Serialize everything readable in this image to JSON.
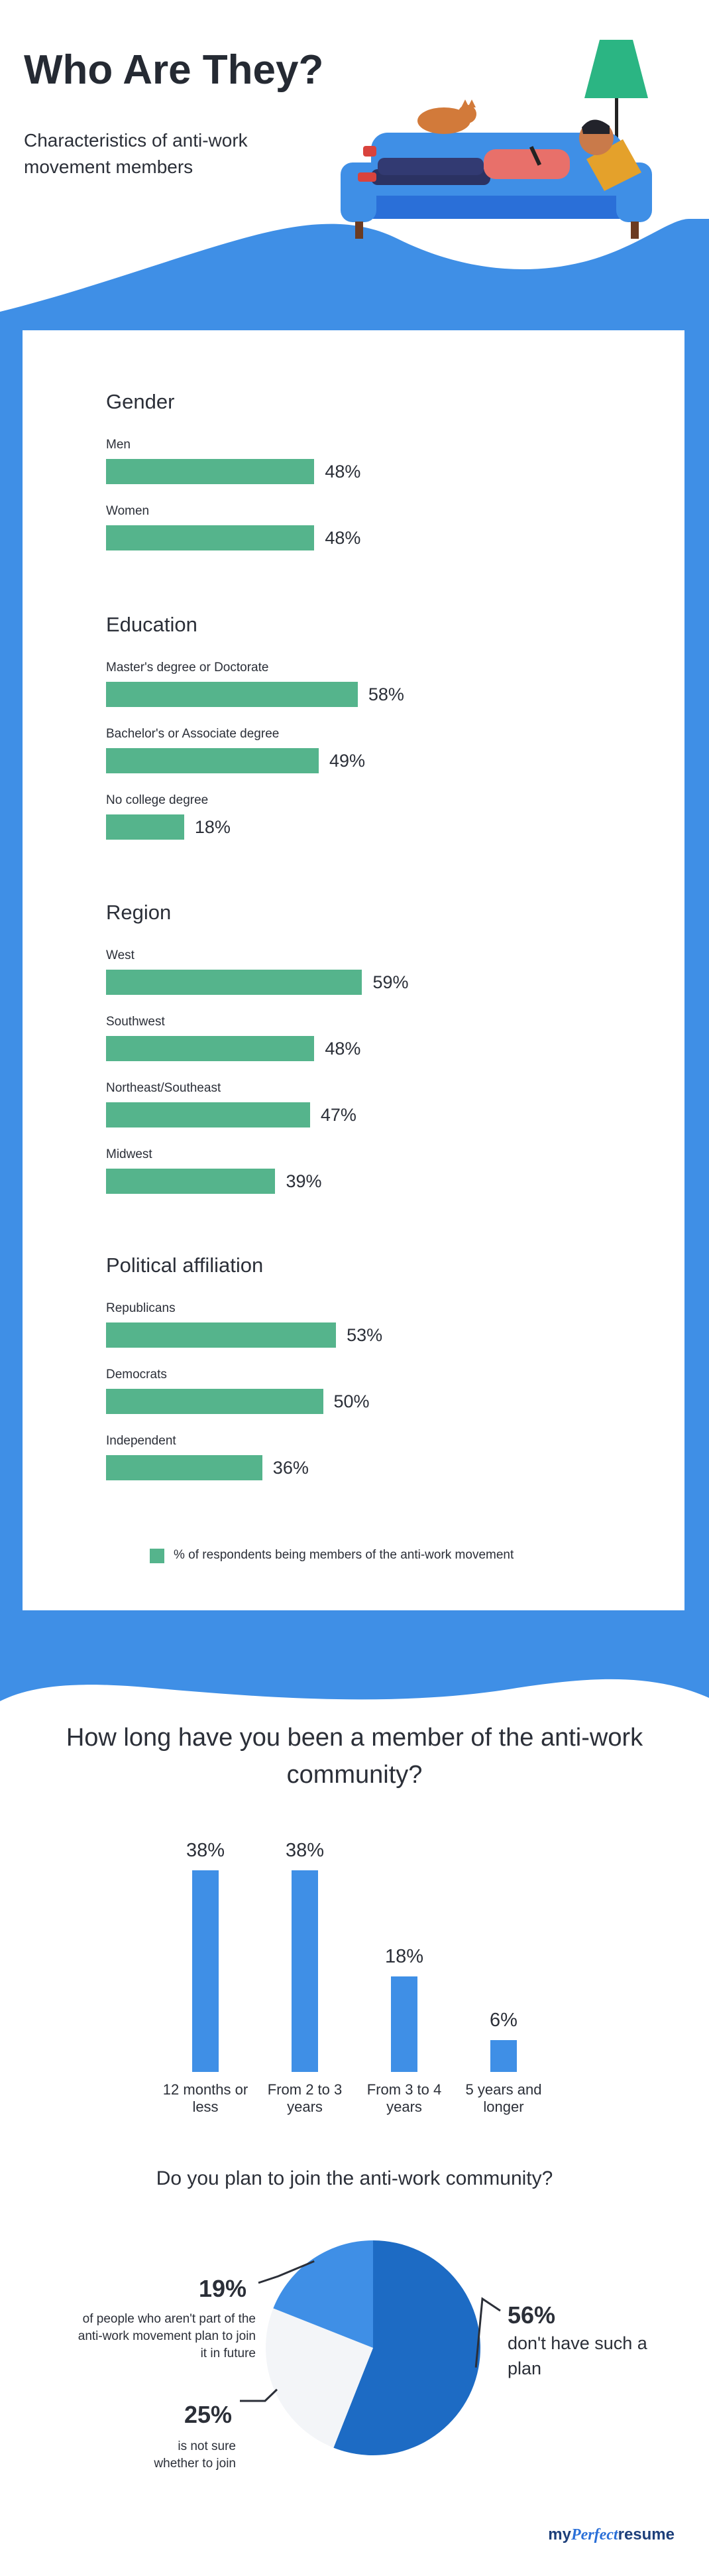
{
  "header": {
    "title": "Who Are They?",
    "subtitle": "Characteristics of anti-work movement members"
  },
  "colors": {
    "bar": "#55b48c",
    "blue_bg": "#3f8fe6",
    "pie_dark": "#1d6bc4",
    "pie_mid": "#3f8fe6",
    "pie_light": "#f3f5f8"
  },
  "chart_data": [
    {
      "type": "bar",
      "orientation": "horizontal",
      "legend": "% of respondents being members of the anti-work movement",
      "groups": [
        {
          "title": "Gender",
          "categories": [
            "Men",
            "Women"
          ],
          "values": [
            48,
            48
          ],
          "labels": [
            "48%",
            "48%"
          ]
        },
        {
          "title": "Education",
          "categories": [
            "Master's degree or Doctorate",
            "Bachelor's or Associate degree",
            "No college degree"
          ],
          "values": [
            58,
            49,
            18
          ],
          "labels": [
            "58%",
            "49%",
            "18%"
          ]
        },
        {
          "title": "Region",
          "categories": [
            "West",
            "Southwest",
            "Northeast/Southeast",
            "Midwest"
          ],
          "values": [
            59,
            48,
            47,
            39
          ],
          "labels": [
            "59%",
            "48%",
            "47%",
            "39%"
          ]
        },
        {
          "title": "Political affiliation",
          "categories": [
            "Republicans",
            "Democrats",
            "Independent"
          ],
          "values": [
            53,
            50,
            36
          ],
          "labels": [
            "53%",
            "50%",
            "36%"
          ]
        }
      ]
    },
    {
      "type": "bar",
      "orientation": "vertical",
      "title": "How long have you been a member of the anti-work community?",
      "categories": [
        "12 months or less",
        "From 2 to 3 years",
        "From 3 to 4 years",
        "5 years and longer"
      ],
      "values": [
        38,
        38,
        18,
        6
      ],
      "labels": [
        "38%",
        "38%",
        "18%",
        "6%"
      ]
    },
    {
      "type": "pie",
      "title": "Do you plan to join the anti-work community?",
      "slices": [
        {
          "value": 56,
          "label": "56%",
          "desc": "don't have such a plan"
        },
        {
          "value": 25,
          "label": "25%",
          "desc": "is not sure whether to join"
        },
        {
          "value": 19,
          "label": "19%",
          "desc": "of people who aren't part of the anti-work movement plan to join it in future"
        }
      ]
    }
  ],
  "footer": {
    "logo_left": "my",
    "logo_mid": "Perfect",
    "logo_right": "resume"
  }
}
